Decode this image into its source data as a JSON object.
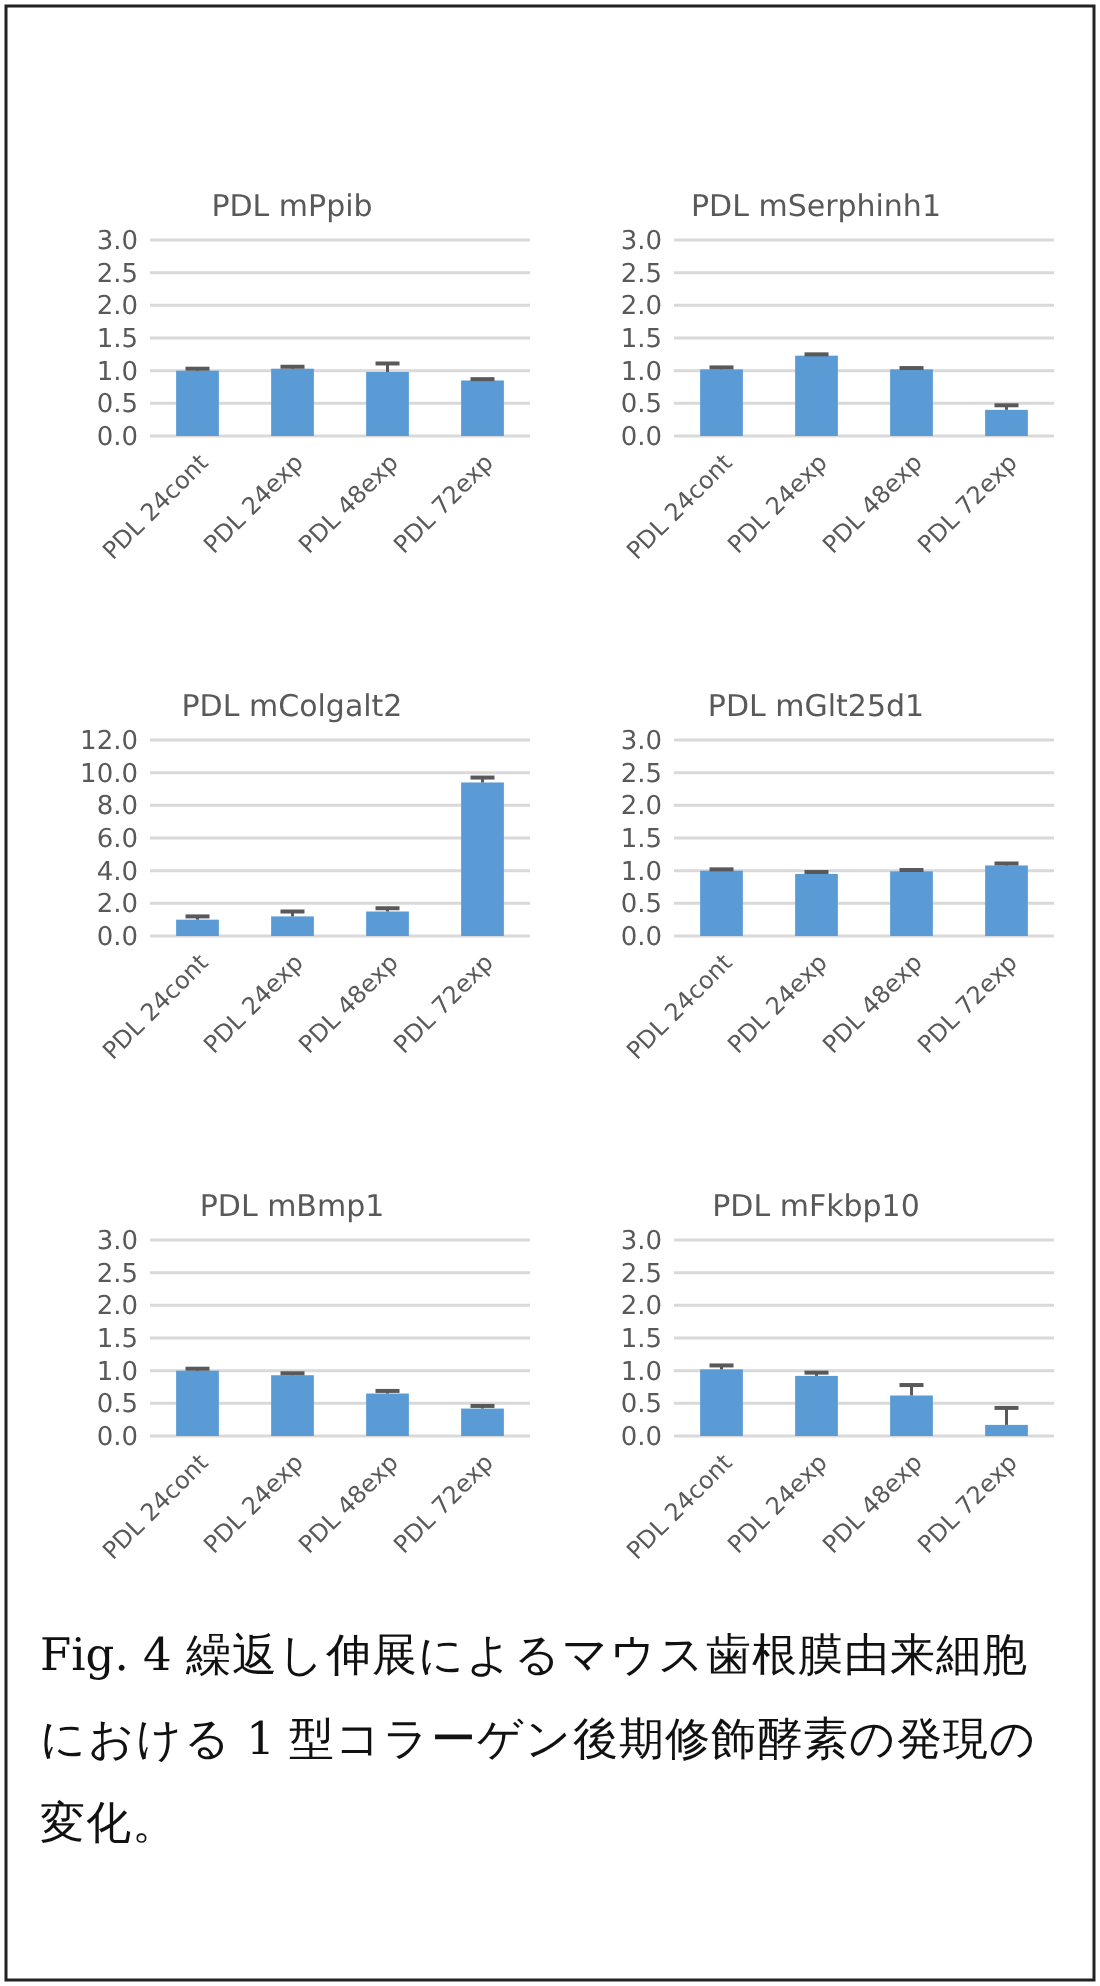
{
  "chart_data": [
    {
      "type": "bar",
      "title": "PDL mPpib",
      "categories": [
        "PDL 24cont",
        "PDL 24exp",
        "PDL 48exp",
        "PDL 72exp"
      ],
      "values": [
        1.0,
        1.03,
        0.98,
        0.85
      ],
      "errors": [
        [
          1.0,
          1.03
        ],
        [
          1.03,
          1.06
        ],
        [
          0.98,
          1.11
        ],
        [
          0.85,
          0.87
        ]
      ],
      "color": "#5b9bd5",
      "ylim": [
        0,
        3
      ],
      "yticks": [
        {
          "value": 0,
          "label": "0.0"
        },
        {
          "value": 0.5,
          "label": "0.5"
        },
        {
          "value": 1,
          "label": "1.0"
        },
        {
          "value": 1.5,
          "label": "1.5"
        },
        {
          "value": 2,
          "label": "2.0"
        },
        {
          "value": 2.5,
          "label": "2.5"
        },
        {
          "value": 3,
          "label": "3.0"
        }
      ],
      "grid": "y"
    },
    {
      "type": "bar",
      "title": "PDL mSerphinh1",
      "categories": [
        "PDL 24cont",
        "PDL 24exp",
        "PDL 48exp",
        "PDL 72exp"
      ],
      "values": [
        1.02,
        1.23,
        1.02,
        0.4
      ],
      "errors": [
        [
          1.02,
          1.05
        ],
        [
          1.23,
          1.25
        ],
        [
          1.02,
          1.04
        ],
        [
          0.4,
          0.47
        ]
      ],
      "color": "#5b9bd5",
      "ylim": [
        0,
        3
      ],
      "yticks": [
        {
          "value": 0,
          "label": "0.0"
        },
        {
          "value": 0.5,
          "label": "0.5"
        },
        {
          "value": 1,
          "label": "1.0"
        },
        {
          "value": 1.5,
          "label": "1.5"
        },
        {
          "value": 2,
          "label": "2.0"
        },
        {
          "value": 2.5,
          "label": "2.5"
        },
        {
          "value": 3,
          "label": "3.0"
        }
      ],
      "grid": "y"
    },
    {
      "type": "bar",
      "title": "PDL mColgalt2",
      "categories": [
        "PDL 24cont",
        "PDL 24exp",
        "PDL 48exp",
        "PDL 72exp"
      ],
      "values": [
        1.0,
        1.2,
        1.5,
        9.4
      ],
      "errors": [
        [
          1.0,
          1.2
        ],
        [
          1.2,
          1.5
        ],
        [
          1.5,
          1.7
        ],
        [
          9.4,
          9.7
        ]
      ],
      "color": "#5b9bd5",
      "ylim": [
        0,
        12
      ],
      "yticks": [
        {
          "value": 0,
          "label": "0.0"
        },
        {
          "value": 2,
          "label": "2.0"
        },
        {
          "value": 4,
          "label": "4.0"
        },
        {
          "value": 6,
          "label": "6.0"
        },
        {
          "value": 8,
          "label": "8.0"
        },
        {
          "value": 10,
          "label": "10.0"
        },
        {
          "value": 12,
          "label": "12.0"
        }
      ],
      "grid": "y"
    },
    {
      "type": "bar",
      "title": "PDL mGlt25d1",
      "categories": [
        "PDL 24cont",
        "PDL 24exp",
        "PDL 48exp",
        "PDL 72exp"
      ],
      "values": [
        1.0,
        0.95,
        0.99,
        1.08
      ],
      "errors": [
        [
          1.0,
          1.02
        ],
        [
          0.95,
          0.98
        ],
        [
          0.99,
          1.01
        ],
        [
          1.08,
          1.11
        ]
      ],
      "color": "#5b9bd5",
      "ylim": [
        0,
        3
      ],
      "yticks": [
        {
          "value": 0,
          "label": "0.0"
        },
        {
          "value": 0.5,
          "label": "0.5"
        },
        {
          "value": 1,
          "label": "1.0"
        },
        {
          "value": 1.5,
          "label": "1.5"
        },
        {
          "value": 2,
          "label": "2.0"
        },
        {
          "value": 2.5,
          "label": "2.5"
        },
        {
          "value": 3,
          "label": "3.0"
        }
      ],
      "grid": "y"
    },
    {
      "type": "bar",
      "title": "PDL mBmp1",
      "categories": [
        "PDL 24cont",
        "PDL 24exp",
        "PDL 48exp",
        "PDL 72exp"
      ],
      "values": [
        1.0,
        0.93,
        0.65,
        0.42
      ],
      "errors": [
        [
          1.0,
          1.03
        ],
        [
          0.93,
          0.96
        ],
        [
          0.65,
          0.69
        ],
        [
          0.42,
          0.46
        ]
      ],
      "color": "#5b9bd5",
      "ylim": [
        0,
        3
      ],
      "yticks": [
        {
          "value": 0,
          "label": "0.0"
        },
        {
          "value": 0.5,
          "label": "0.5"
        },
        {
          "value": 1,
          "label": "1.0"
        },
        {
          "value": 1.5,
          "label": "1.5"
        },
        {
          "value": 2,
          "label": "2.0"
        },
        {
          "value": 2.5,
          "label": "2.5"
        },
        {
          "value": 3,
          "label": "3.0"
        }
      ],
      "grid": "y"
    },
    {
      "type": "bar",
      "title": "PDL mFkbp10",
      "categories": [
        "PDL 24cont",
        "PDL 24exp",
        "PDL 48exp",
        "PDL 72exp"
      ],
      "values": [
        1.02,
        0.92,
        0.62,
        0.17
      ],
      "errors": [
        [
          1.02,
          1.08
        ],
        [
          0.92,
          0.97
        ],
        [
          0.62,
          0.78
        ],
        [
          0.17,
          0.43
        ]
      ],
      "color": "#5b9bd5",
      "ylim": [
        0,
        3
      ],
      "yticks": [
        {
          "value": 0,
          "label": "0.0"
        },
        {
          "value": 0.5,
          "label": "0.5"
        },
        {
          "value": 1,
          "label": "1.0"
        },
        {
          "value": 1.5,
          "label": "1.5"
        },
        {
          "value": 2,
          "label": "2.0"
        },
        {
          "value": 2.5,
          "label": "2.5"
        },
        {
          "value": 3,
          "label": "3.0"
        }
      ],
      "grid": "y"
    },
    {
      "type": "other",
      "annotations": [
        "Fig. 4 繰返し伸展によるマウス歯根膜由来細胞における 1 型コラーゲン後期修飾酵素の発現の変化。"
      ]
    }
  ]
}
